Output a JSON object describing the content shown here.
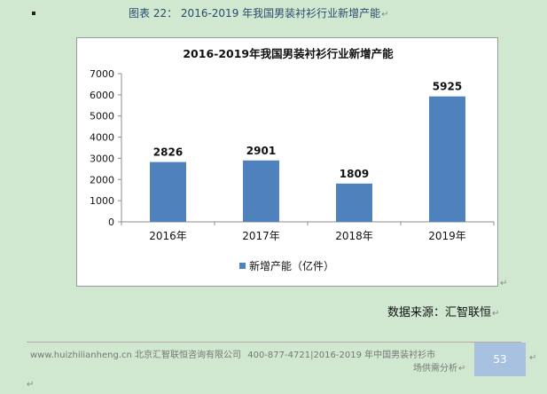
{
  "caption": {
    "label": "图表 22：",
    "title": "2016-2019 年我国男装衬衫行业新增产能"
  },
  "source_text": "数据来源：汇智联恒",
  "footer": {
    "site": "www.huizhilianheng.cn",
    "company": "北京汇智联恒咨询有限公司",
    "phone": "400-877-4721",
    "report": "2016-2019 年中国男装衬衫市",
    "report_cont": "场供需分析",
    "page_number": "53"
  },
  "colors": {
    "bar": "#4f81bd",
    "background": "#cfe8cf",
    "page_box": "#a9c1e0"
  },
  "chart_data": {
    "type": "bar",
    "title": "2016-2019年我国男装衬衫行业新增产能",
    "categories": [
      "2016年",
      "2017年",
      "2018年",
      "2019年"
    ],
    "series": [
      {
        "name": "新增产能（亿件）",
        "values": [
          2826,
          2901,
          1809,
          5925
        ]
      }
    ],
    "ylim": [
      0,
      7000
    ],
    "yticks": [
      0,
      1000,
      2000,
      3000,
      4000,
      5000,
      6000,
      7000
    ],
    "data_labels": true,
    "grid": false,
    "legend": "bottom"
  }
}
